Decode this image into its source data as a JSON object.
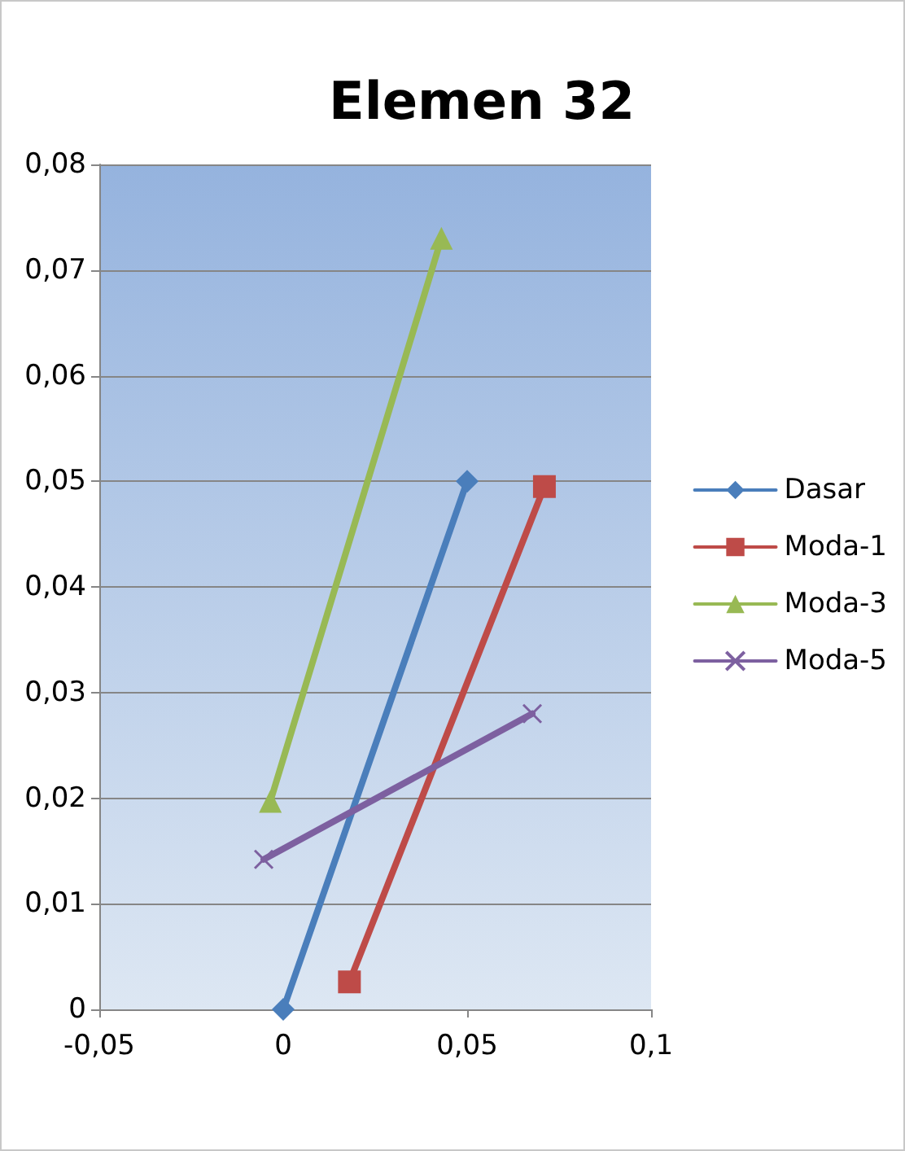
{
  "chart_data": {
    "type": "line",
    "title": "Elemen 32",
    "xlim": [
      -0.05,
      0.1
    ],
    "xticks": [
      {
        "value": -0.05,
        "label": "-0,05"
      },
      {
        "value": 0,
        "label": "0"
      },
      {
        "value": 0.05,
        "label": "0,05"
      },
      {
        "value": 0.1,
        "label": "0,1"
      }
    ],
    "ylim": [
      0,
      0.08
    ],
    "yticks": [
      {
        "value": 0,
        "label": "0"
      },
      {
        "value": 0.01,
        "label": "0,01"
      },
      {
        "value": 0.02,
        "label": "0,02"
      },
      {
        "value": 0.03,
        "label": "0,03"
      },
      {
        "value": 0.04,
        "label": "0,04"
      },
      {
        "value": 0.05,
        "label": "0,05"
      },
      {
        "value": 0.06,
        "label": "0,06"
      },
      {
        "value": 0.07,
        "label": "0,07"
      },
      {
        "value": 0.08,
        "label": "0,08"
      }
    ],
    "grid": "y",
    "legend": "right",
    "line_style": "solid",
    "series": [
      {
        "name": "Dasar",
        "color": "#4a7ebb",
        "marker": "diamond",
        "x": [
          0,
          0.05
        ],
        "values": [
          0,
          0.05
        ]
      },
      {
        "name": "Moda-1",
        "color": "#be4b48",
        "marker": "square",
        "x": [
          0.018,
          0.071
        ],
        "values": [
          0.0026,
          0.0495
        ]
      },
      {
        "name": "Moda-3",
        "color": "#98b954",
        "marker": "triangle",
        "x": [
          -0.0035,
          0.043
        ],
        "values": [
          0.0197,
          0.073
        ]
      },
      {
        "name": "Moda-5",
        "color": "#7d60a0",
        "marker": "cross",
        "x": [
          -0.0053,
          0.0677
        ],
        "values": [
          0.0142,
          0.028
        ]
      }
    ]
  }
}
